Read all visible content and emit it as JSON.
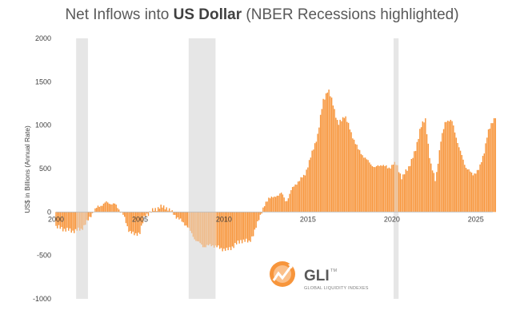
{
  "chart_data": {
    "type": "bar",
    "title_prefix": "Net Inflows into ",
    "title_bold": "US Dollar",
    "title_suffix": " (NBER Recessions highlighted)",
    "ylabel": "US$ in Billions (Annual Rate)",
    "xlabel": "",
    "ylim": [
      -1000,
      2000
    ],
    "yticks": [
      -1000,
      -500,
      0,
      500,
      1000,
      1500,
      2000
    ],
    "xlim": [
      2000,
      2026.2
    ],
    "xticks": [
      2000,
      2005,
      2010,
      2015,
      2020,
      2025
    ],
    "grid": false,
    "bar_color": "#F7953B",
    "recession_color": "#E6E6E6",
    "recessions": [
      [
        2001.2,
        2001.9
      ],
      [
        2007.9,
        2009.5
      ],
      [
        2020.1,
        2020.4
      ]
    ],
    "anchors": [
      [
        2000.0,
        -170
      ],
      [
        2000.5,
        -200
      ],
      [
        2001.0,
        -220
      ],
      [
        2001.5,
        -200
      ],
      [
        2001.9,
        -100
      ],
      [
        2002.2,
        0
      ],
      [
        2002.5,
        60
      ],
      [
        2003.0,
        110
      ],
      [
        2003.5,
        90
      ],
      [
        2003.8,
        20
      ],
      [
        2004.0,
        -30
      ],
      [
        2004.3,
        -200
      ],
      [
        2004.7,
        -270
      ],
      [
        2005.0,
        -230
      ],
      [
        2005.3,
        -40
      ],
      [
        2005.8,
        20
      ],
      [
        2006.2,
        60
      ],
      [
        2006.6,
        50
      ],
      [
        2006.9,
        0
      ],
      [
        2007.2,
        -60
      ],
      [
        2007.8,
        -160
      ],
      [
        2008.3,
        -320
      ],
      [
        2008.8,
        -400
      ],
      [
        2009.3,
        -380
      ],
      [
        2009.8,
        -420
      ],
      [
        2010.2,
        -440
      ],
      [
        2010.6,
        -390
      ],
      [
        2011.0,
        -330
      ],
      [
        2011.5,
        -340
      ],
      [
        2011.8,
        -250
      ],
      [
        2012.1,
        -60
      ],
      [
        2012.4,
        60
      ],
      [
        2012.7,
        180
      ],
      [
        2013.0,
        160
      ],
      [
        2013.4,
        230
      ],
      [
        2013.7,
        110
      ],
      [
        2014.0,
        250
      ],
      [
        2014.4,
        350
      ],
      [
        2014.8,
        420
      ],
      [
        2015.2,
        650
      ],
      [
        2015.6,
        900
      ],
      [
        2015.9,
        1280
      ],
      [
        2016.2,
        1410
      ],
      [
        2016.5,
        1250
      ],
      [
        2016.8,
        1000
      ],
      [
        2017.2,
        1120
      ],
      [
        2017.6,
        900
      ],
      [
        2018.0,
        720
      ],
      [
        2018.5,
        600
      ],
      [
        2019.0,
        510
      ],
      [
        2019.4,
        550
      ],
      [
        2019.8,
        500
      ],
      [
        2020.1,
        560
      ],
      [
        2020.3,
        540
      ],
      [
        2020.6,
        390
      ],
      [
        2021.0,
        520
      ],
      [
        2021.4,
        700
      ],
      [
        2021.7,
        980
      ],
      [
        2022.0,
        1060
      ],
      [
        2022.3,
        560
      ],
      [
        2022.6,
        360
      ],
      [
        2022.9,
        800
      ],
      [
        2023.2,
        1060
      ],
      [
        2023.6,
        1040
      ],
      [
        2024.0,
        740
      ],
      [
        2024.4,
        520
      ],
      [
        2024.8,
        430
      ],
      [
        2025.2,
        490
      ],
      [
        2025.5,
        700
      ],
      [
        2025.7,
        900
      ],
      [
        2026.0,
        1050
      ],
      [
        2026.2,
        1110
      ]
    ],
    "notes": "Monthly bars; values interpolated from anchor points read off the chart axes."
  },
  "logo": {
    "mark": "GLI",
    "tm": "TM",
    "subtitle": "GLOBAL LIQUIDITY INDEXES"
  }
}
